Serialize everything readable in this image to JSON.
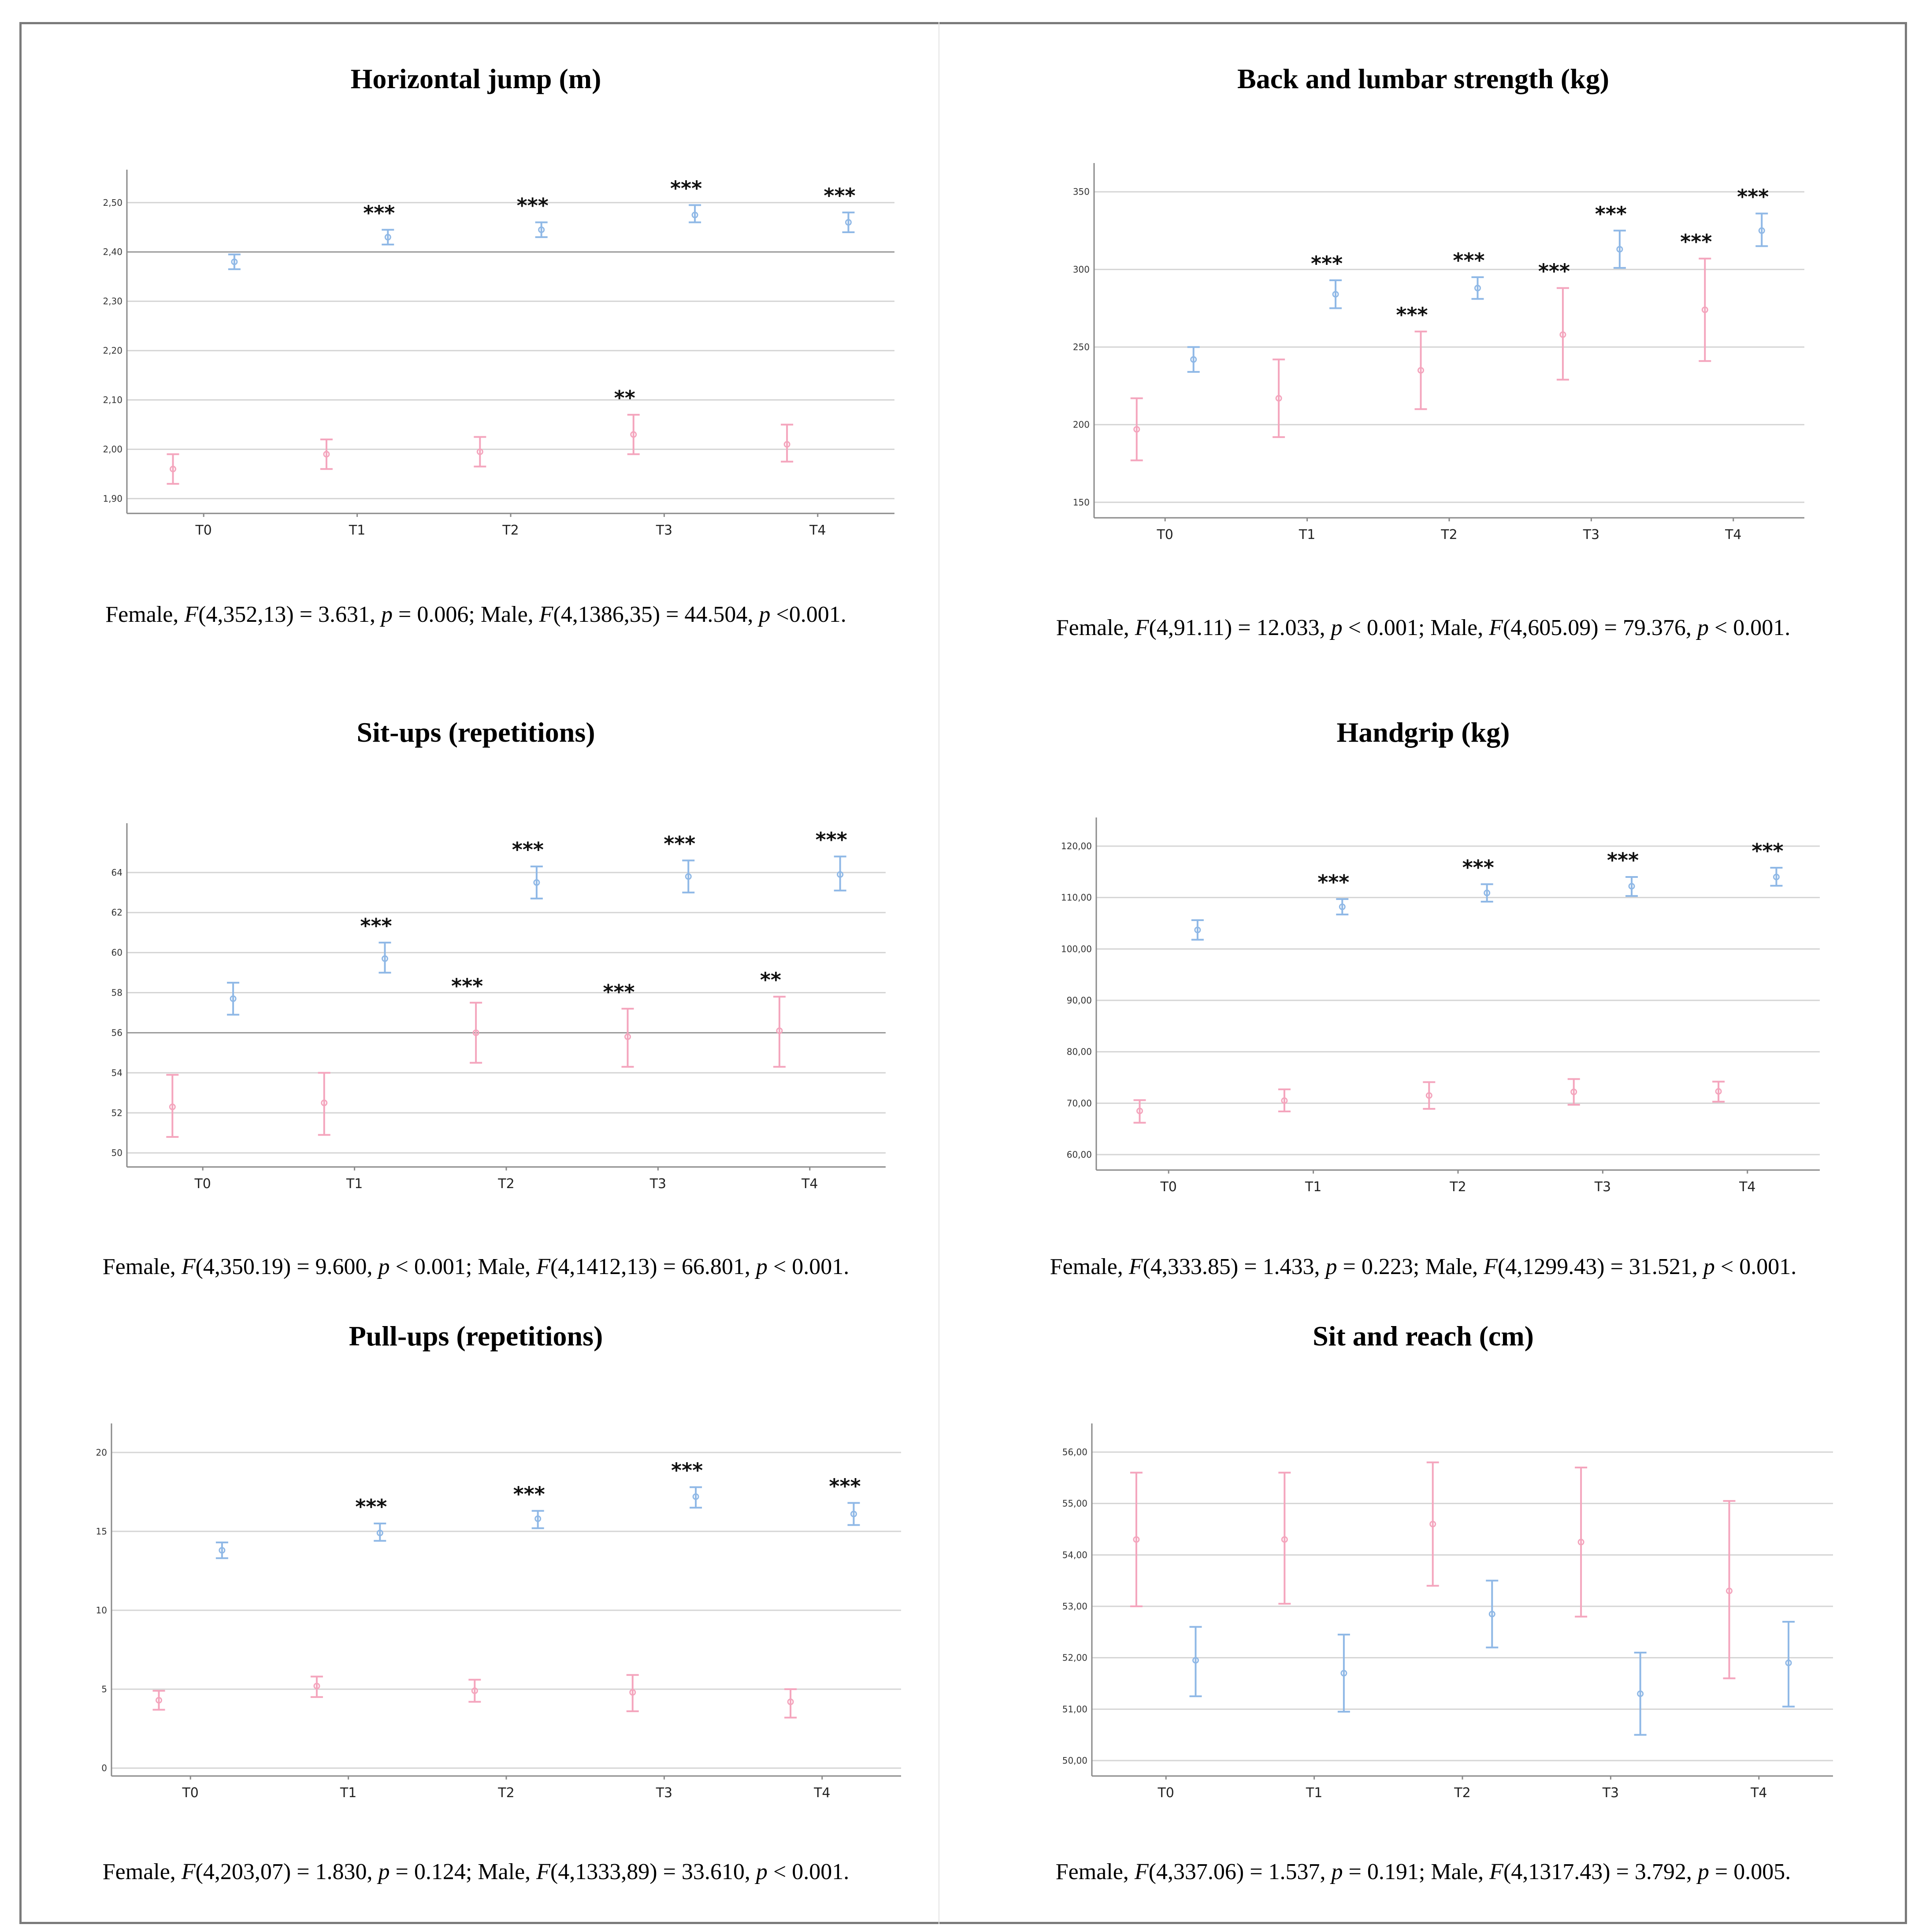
{
  "colors": {
    "female": "#f4a5bd",
    "male": "#8fb8e6",
    "grid": "#d5d5d5",
    "axis": "#8a8a8a"
  },
  "chart_data": [
    {
      "type": "scatter",
      "title": "Horizontal jump (m)",
      "categories": [
        "T0",
        "T1",
        "T2",
        "T3",
        "T4"
      ],
      "ylim": [
        1.87,
        2.54
      ],
      "yticks": [
        1.9,
        2.0,
        2.1,
        2.2,
        2.3,
        2.4,
        2.5
      ],
      "yticks_labels": [
        "1,90",
        "2,00",
        "2,10",
        "2,20",
        "2,30",
        "2,40",
        "2,50"
      ],
      "ref_line": 2.4,
      "series": [
        {
          "name": "Female",
          "color": "#f4a5bd",
          "offset": -0.2,
          "values": [
            1.96,
            1.99,
            1.995,
            2.03,
            2.01
          ],
          "lower": [
            1.93,
            1.96,
            1.965,
            1.99,
            1.975
          ],
          "upper": [
            1.99,
            2.02,
            2.025,
            2.07,
            2.05
          ],
          "sig": [
            "",
            "",
            "",
            "**",
            ""
          ]
        },
        {
          "name": "Male",
          "color": "#8fb8e6",
          "offset": 0.2,
          "values": [
            2.38,
            2.43,
            2.445,
            2.475,
            2.46
          ],
          "lower": [
            2.365,
            2.415,
            2.43,
            2.46,
            2.44
          ],
          "upper": [
            2.395,
            2.445,
            2.46,
            2.495,
            2.48
          ],
          "sig": [
            "",
            "***",
            "***",
            "***",
            "***"
          ]
        }
      ],
      "stats": {
        "f_label": "Female, ",
        "f_df": "(4,352,13) = 3.631, ",
        "f_p": " = 0.006; Male, ",
        "m_df": "(4,1386,35) = 44.504, ",
        "m_p": " <0.001."
      }
    },
    {
      "type": "scatter",
      "title": "Back and lumbar strength (kg)",
      "categories": [
        "T0",
        "T1",
        "T2",
        "T3",
        "T4"
      ],
      "ylim": [
        140,
        360
      ],
      "yticks": [
        150,
        200,
        250,
        300,
        350
      ],
      "yticks_labels": [
        "150",
        "200",
        "250",
        "300",
        "350"
      ],
      "series": [
        {
          "name": "Female",
          "color": "#f4a5bd",
          "offset": -0.2,
          "values": [
            197,
            217,
            235,
            258,
            274
          ],
          "lower": [
            177,
            192,
            210,
            229,
            241
          ],
          "upper": [
            217,
            242,
            260,
            288,
            307
          ],
          "sig": [
            "",
            "",
            "***",
            "***",
            "***"
          ]
        },
        {
          "name": "Male",
          "color": "#8fb8e6",
          "offset": 0.2,
          "values": [
            242,
            284,
            288,
            313,
            325
          ],
          "lower": [
            234,
            275,
            281,
            301,
            315
          ],
          "upper": [
            250,
            293,
            295,
            325,
            336
          ],
          "sig": [
            "",
            "***",
            "***",
            "***",
            "***"
          ]
        }
      ],
      "stats": {
        "f_label": "Female, ",
        "f_df": "(4,91.11) = 12.033, ",
        "f_p": " < 0.001; Male, ",
        "m_df": "(4,605.09) = 79.376, ",
        "m_p": " < 0.001."
      }
    },
    {
      "type": "scatter",
      "title": "Sit-ups (repetitions)",
      "categories": [
        "T0",
        "T1",
        "T2",
        "T3",
        "T4"
      ],
      "ylim": [
        49.3,
        65.8
      ],
      "yticks": [
        50,
        52,
        54,
        56,
        58,
        60,
        62,
        64
      ],
      "yticks_labels": [
        "50",
        "52",
        "54",
        "56",
        "58",
        "60",
        "62",
        "64"
      ],
      "ref_line": 56,
      "series": [
        {
          "name": "Female",
          "color": "#f4a5bd",
          "offset": -0.2,
          "values": [
            52.3,
            52.5,
            56.0,
            55.8,
            56.1
          ],
          "lower": [
            50.8,
            50.9,
            54.5,
            54.3,
            54.3
          ],
          "upper": [
            53.9,
            54.0,
            57.5,
            57.2,
            57.8
          ],
          "sig": [
            "",
            "",
            "***",
            "***",
            "**"
          ]
        },
        {
          "name": "Male",
          "color": "#8fb8e6",
          "offset": 0.2,
          "values": [
            57.7,
            59.7,
            63.5,
            63.8,
            63.9
          ],
          "lower": [
            56.9,
            59.0,
            62.7,
            63.0,
            63.1
          ],
          "upper": [
            58.5,
            60.5,
            64.3,
            64.6,
            64.8
          ],
          "sig": [
            "",
            "***",
            "***",
            "***",
            "***"
          ]
        }
      ],
      "stats": {
        "f_label": "Female, ",
        "f_df": "(4,350.19) = 9.600, ",
        "f_p": " < 0.001; Male, ",
        "m_df": "(4,1412,13) = 66.801, ",
        "m_p": " < 0.001."
      }
    },
    {
      "type": "scatter",
      "title": "Handgrip (kg)",
      "categories": [
        "T0",
        "T1",
        "T2",
        "T3",
        "T4"
      ],
      "ylim": [
        57,
        123
      ],
      "yticks": [
        60,
        70,
        80,
        90,
        100,
        110,
        120
      ],
      "yticks_labels": [
        "60,00",
        "70,00",
        "80,00",
        "90,00",
        "100,00",
        "110,00",
        "120,00"
      ],
      "series": [
        {
          "name": "Female",
          "color": "#f4a5bd",
          "offset": -0.2,
          "values": [
            68.5,
            70.5,
            71.5,
            72.2,
            72.3
          ],
          "lower": [
            66.2,
            68.4,
            68.9,
            69.7,
            70.3
          ],
          "upper": [
            70.6,
            72.7,
            74.1,
            74.7,
            74.2
          ],
          "sig": [
            "",
            "",
            "",
            "",
            ""
          ]
        },
        {
          "name": "Male",
          "color": "#8fb8e6",
          "offset": 0.2,
          "values": [
            103.7,
            108.2,
            110.9,
            112.2,
            114.0
          ],
          "lower": [
            101.8,
            106.7,
            109.2,
            110.3,
            112.3
          ],
          "upper": [
            105.6,
            109.7,
            112.6,
            114.0,
            115.8
          ],
          "sig": [
            "",
            "***",
            "***",
            "***",
            "***"
          ]
        }
      ],
      "stats": {
        "f_label": "Female, ",
        "f_df": "(4,333.85) = 1.433, ",
        "f_p": " = 0.223; Male, ",
        "m_df": "(4,1299.43) = 31.521, ",
        "m_p": " < 0.001."
      }
    },
    {
      "type": "scatter",
      "title": "Pull-ups (repetitions)",
      "categories": [
        "T0",
        "T1",
        "T2",
        "T3",
        "T4"
      ],
      "ylim": [
        -0.5,
        21
      ],
      "yticks": [
        0,
        5,
        10,
        15,
        20
      ],
      "yticks_labels": [
        "0",
        "5",
        "10",
        "15",
        "20"
      ],
      "series": [
        {
          "name": "Female",
          "color": "#f4a5bd",
          "offset": -0.2,
          "values": [
            4.3,
            5.2,
            4.9,
            4.8,
            4.2
          ],
          "lower": [
            3.7,
            4.5,
            4.2,
            3.6,
            3.2
          ],
          "upper": [
            4.9,
            5.8,
            5.6,
            5.9,
            5.0
          ],
          "sig": [
            "",
            "",
            "",
            "",
            ""
          ]
        },
        {
          "name": "Male",
          "color": "#8fb8e6",
          "offset": 0.2,
          "values": [
            13.8,
            14.9,
            15.8,
            17.2,
            16.1
          ],
          "lower": [
            13.3,
            14.4,
            15.2,
            16.5,
            15.4
          ],
          "upper": [
            14.3,
            15.5,
            16.3,
            17.8,
            16.8
          ],
          "sig": [
            "",
            "***",
            "***",
            "***",
            "***"
          ]
        }
      ],
      "stats": {
        "f_label": "Female, ",
        "f_df": "(4,203,07) = 1.830, ",
        "f_p": " = 0.124; Male, ",
        "m_df": "(4,1333,89) = 33.610, ",
        "m_p": " < 0.001."
      }
    },
    {
      "type": "scatter",
      "title": "Sit and reach (cm)",
      "categories": [
        "T0",
        "T1",
        "T2",
        "T3",
        "T4"
      ],
      "ylim": [
        49.7,
        56.3
      ],
      "yticks": [
        50,
        51,
        52,
        53,
        54,
        55,
        56
      ],
      "yticks_labels": [
        "50,00",
        "51,00",
        "52,00",
        "53,00",
        "54,00",
        "55,00",
        "56,00"
      ],
      "series": [
        {
          "name": "Female",
          "color": "#f4a5bd",
          "offset": -0.2,
          "values": [
            54.3,
            54.3,
            54.6,
            54.25,
            53.3
          ],
          "lower": [
            53.0,
            53.05,
            53.4,
            52.8,
            51.6
          ],
          "upper": [
            55.6,
            55.6,
            55.8,
            55.7,
            55.05
          ],
          "sig": [
            "",
            "",
            "",
            "",
            ""
          ]
        },
        {
          "name": "Male",
          "color": "#8fb8e6",
          "offset": 0.2,
          "values": [
            51.95,
            51.7,
            52.85,
            51.3,
            51.9
          ],
          "lower": [
            51.25,
            50.95,
            52.2,
            50.5,
            51.05
          ],
          "upper": [
            52.6,
            52.45,
            53.5,
            52.1,
            52.7
          ],
          "sig": [
            "",
            "",
            "",
            "",
            ""
          ]
        }
      ],
      "stats": {
        "f_label": "Female, ",
        "f_df": "(4,337.06) = 1.537, ",
        "f_p": " = 0.191; Male, ",
        "m_df": "(4,1317.43) = 3.792, ",
        "m_p": " = 0.005."
      }
    }
  ],
  "labels": {
    "F": "F",
    "p": "p"
  }
}
